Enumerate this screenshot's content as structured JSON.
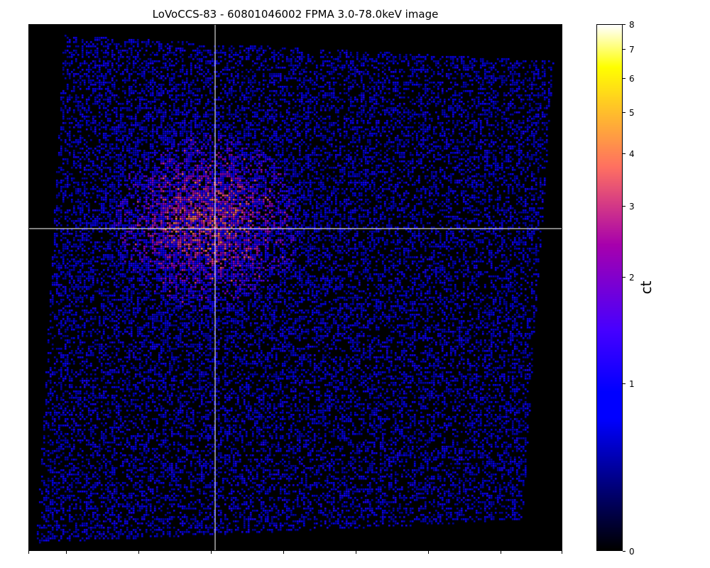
{
  "chart_data": {
    "type": "heatmap",
    "title": "LoVoCCS-83 - 60801046002 FPMA 3.0-78.0keV image",
    "xlabel": "",
    "ylabel": "",
    "colormap": "gnuplot2",
    "colorbar": {
      "label": "ct",
      "scale": "asinh",
      "range": [
        0,
        8
      ],
      "ticks": [
        0,
        1,
        2,
        3,
        4,
        5,
        6,
        7,
        8
      ],
      "tick_labels": [
        "0",
        "1",
        "2",
        "3",
        "4",
        "5",
        "6",
        "7",
        "8"
      ]
    },
    "crosshair": {
      "color": "#ffffff"
    },
    "features": {
      "background": "#000000",
      "bright_region_near_crosshair": true
    }
  }
}
